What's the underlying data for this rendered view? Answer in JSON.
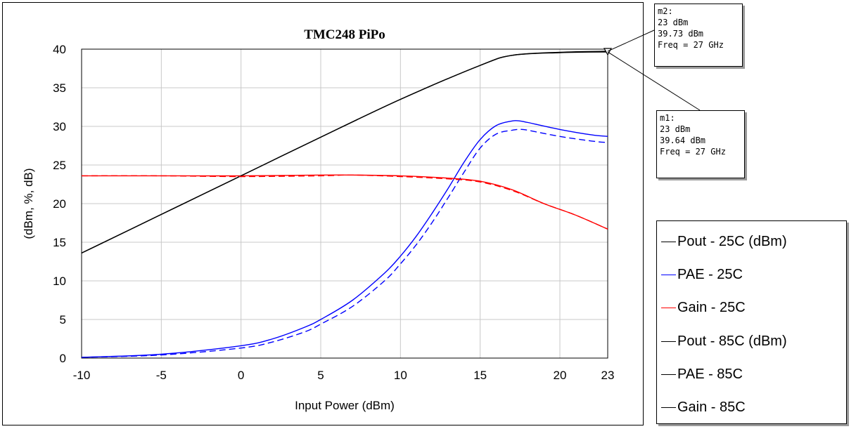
{
  "chart_data": {
    "type": "line",
    "title": "TMC248 PiPo",
    "xlabel": "Input Power (dBm)",
    "ylabel": "(dBm, %, dB)",
    "xlim": [
      -10,
      23
    ],
    "ylim": [
      0,
      40
    ],
    "xticks": [
      -10,
      -5,
      0,
      5,
      10,
      15,
      20,
      23
    ],
    "yticks": [
      0,
      5,
      10,
      15,
      20,
      25,
      30,
      35,
      40
    ],
    "grid": true,
    "legend_position": "right",
    "series": [
      {
        "name": "Pout - 25C (dBm)",
        "color": "#000000",
        "dash": false,
        "x": [
          -10,
          -5,
          0,
          5,
          10,
          15,
          17,
          20,
          23
        ],
        "y": [
          13.6,
          18.6,
          23.6,
          28.6,
          33.5,
          37.9,
          39.2,
          39.55,
          39.64
        ]
      },
      {
        "name": "PAE - 25C",
        "color": "#0000ff",
        "dash": false,
        "x": [
          -10,
          -5,
          0,
          2,
          4,
          5,
          7,
          9,
          10,
          11,
          12,
          13,
          14,
          15,
          16,
          17,
          17.5,
          18,
          20,
          22,
          23
        ],
        "y": [
          0.1,
          0.5,
          1.6,
          2.5,
          4.0,
          5.0,
          7.5,
          11.0,
          13.2,
          15.8,
          18.8,
          22.0,
          25.4,
          28.3,
          30.1,
          30.7,
          30.7,
          30.5,
          29.6,
          28.9,
          28.7
        ]
      },
      {
        "name": "Gain - 25C",
        "color": "#ff0000",
        "dash": false,
        "x": [
          -10,
          -5,
          0,
          5,
          7,
          10,
          13,
          15,
          17,
          19,
          21,
          23
        ],
        "y": [
          23.6,
          23.6,
          23.6,
          23.7,
          23.7,
          23.6,
          23.3,
          22.9,
          21.8,
          20.0,
          18.5,
          16.7
        ]
      },
      {
        "name": "Pout - 85C (dBm)",
        "color": "#000000",
        "dash": false,
        "x": [
          -10,
          -5,
          0,
          5,
          10,
          15,
          17,
          20,
          23
        ],
        "y": [
          13.6,
          18.6,
          23.6,
          28.6,
          33.5,
          37.9,
          39.2,
          39.6,
          39.73
        ]
      },
      {
        "name": "PAE - 85C",
        "color": "#0000ff",
        "dash": true,
        "x": [
          -10,
          -5,
          0,
          2,
          4,
          5,
          7,
          9,
          10,
          11,
          12,
          13,
          14,
          15,
          16,
          17,
          17.5,
          18,
          20,
          22,
          23
        ],
        "y": [
          0.1,
          0.4,
          1.3,
          2.1,
          3.4,
          4.4,
          6.7,
          10.0,
          12.2,
          14.7,
          17.6,
          20.8,
          24.1,
          27.2,
          29.0,
          29.5,
          29.6,
          29.5,
          28.7,
          28.1,
          27.9
        ]
      },
      {
        "name": "Gain - 85C",
        "color": "#ff0000",
        "dash": true,
        "x": [
          -10,
          -5,
          0,
          5,
          7,
          10,
          13,
          15,
          17,
          19,
          21,
          23
        ],
        "y": [
          23.6,
          23.6,
          23.5,
          23.6,
          23.7,
          23.5,
          23.2,
          22.8,
          21.7,
          20.0,
          18.5,
          16.7
        ]
      }
    ],
    "legend_labels": [
      "Pout - 25C (dBm)",
      "PAE - 25C",
      "Gain - 25C",
      "Pout - 85C (dBm)",
      "PAE - 85C",
      "Gain - 85C"
    ],
    "legend_colors": [
      "#000000",
      "#0000ff",
      "#ff0000",
      "#000000",
      "#000000",
      "#000000"
    ],
    "markers": [
      {
        "id": "m2",
        "label": "m2:",
        "x_text": "23 dBm",
        "y_text": "39.73 dBm",
        "freq_text": "Freq = 27 GHz",
        "x": 23,
        "y": 39.73
      },
      {
        "id": "m1",
        "label": "m1:",
        "x_text": "23 dBm",
        "y_text": "39.64 dBm",
        "freq_text": "Freq = 27 GHz",
        "x": 23,
        "y": 39.64
      }
    ]
  }
}
